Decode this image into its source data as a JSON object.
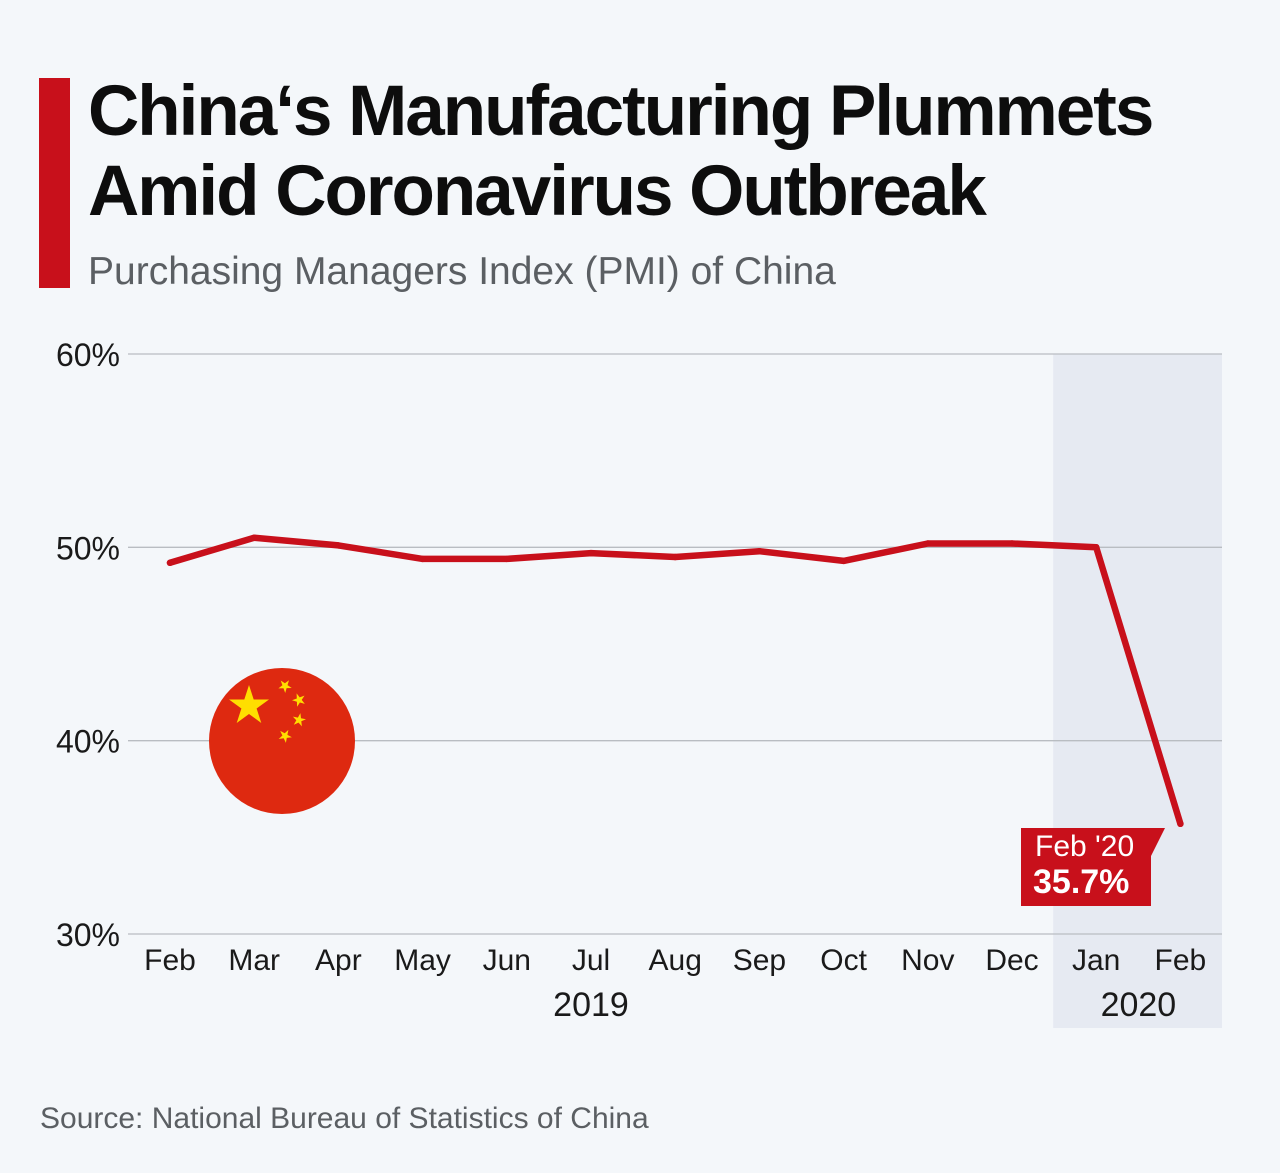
{
  "header": {
    "title_line1": "China‘s Manufacturing Plummets",
    "title_line2": "Amid Coronavirus Outbreak",
    "subtitle": "Purchasing Managers Index (PMI) of China"
  },
  "colors": {
    "accent": "#c8101b",
    "grid": "#b9bdc2",
    "highlight_band": "#e6eaf2",
    "text": "#0d0d0d",
    "muted": "#5b5f63",
    "flag_red": "#de2910",
    "flag_star": "#ffde00"
  },
  "icon": {
    "name": "china-flag-icon"
  },
  "chart_data": {
    "type": "line",
    "title": "China‘s Manufacturing Plummets Amid Coronavirus Outbreak",
    "subtitle": "Purchasing Managers Index (PMI) of China",
    "categories": [
      "Feb",
      "Mar",
      "Apr",
      "May",
      "Jun",
      "Jul",
      "Aug",
      "Sep",
      "Oct",
      "Nov",
      "Dec",
      "Jan",
      "Feb"
    ],
    "year_groups": [
      {
        "label": "2019",
        "from": 0,
        "to": 10
      },
      {
        "label": "2020",
        "from": 11,
        "to": 12
      }
    ],
    "series": [
      {
        "name": "PMI",
        "values": [
          49.2,
          50.5,
          50.1,
          49.4,
          49.4,
          49.7,
          49.5,
          49.8,
          49.3,
          50.2,
          50.2,
          50.0,
          35.7
        ]
      }
    ],
    "unit": "%",
    "ylim": [
      30,
      60
    ],
    "yticks": [
      30,
      40,
      50,
      60
    ],
    "ytick_labels": [
      "30%",
      "40%",
      "50%",
      "60%"
    ],
    "grid": true,
    "highlight_range": [
      11,
      12
    ],
    "annotation": {
      "index": 12,
      "label": "Feb '20",
      "value_text": "35.7%"
    }
  },
  "footer": {
    "source": "Source: National Bureau of Statistics of China"
  }
}
